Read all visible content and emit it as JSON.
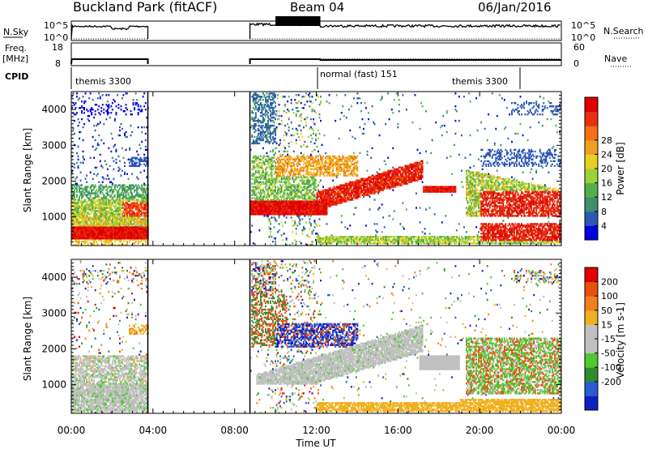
{
  "header": {
    "station": "Buckland Park (fitACF)",
    "beam": "Beam 04",
    "date": "06/Jan/2016"
  },
  "panels": {
    "nsky": {
      "label": "N.Sky",
      "tick_top": "10^5",
      "tick_bottom": "10^0"
    },
    "nsearch": {
      "label": "N.Search",
      "tick_top": "10^5",
      "tick_bottom": "10^0"
    },
    "freq": {
      "label_line1": "Freq.",
      "label_line2": "[MHz]",
      "tick_top": "18",
      "tick_bottom": "8"
    },
    "nave": {
      "label": "Nave",
      "tick_top": "60",
      "tick_bottom": "0"
    },
    "cpid": {
      "label": "CPID",
      "segments": [
        "themis 3300",
        "normal (fast) 151",
        "themis 3300"
      ]
    }
  },
  "chart_data": [
    {
      "type": "heatmap",
      "quantity": "Power",
      "xlabel": "",
      "ylabel": "Slant Range [km]",
      "x_ticks": [
        "00:00",
        "04:00",
        "08:00",
        "12:00",
        "16:00",
        "20:00",
        "00:00"
      ],
      "y_ticks": [
        1000,
        2000,
        3000,
        4000
      ],
      "ylim": [
        200,
        4500
      ],
      "colorbar": {
        "label": "Power [dB]",
        "ticks": [
          4,
          8,
          12,
          16,
          20,
          24,
          28
        ],
        "colors": [
          "#0000e0",
          "#2d57b5",
          "#3f8f6a",
          "#52b04a",
          "#9bd23a",
          "#e8d020",
          "#f0a020",
          "#f27018",
          "#e83010",
          "#e00000"
        ]
      },
      "data_gap_hours": [
        3.75,
        8.75
      ]
    },
    {
      "type": "heatmap",
      "quantity": "Velocity",
      "xlabel": "Time UT",
      "ylabel": "Slant Range [km]",
      "x_ticks": [
        "00:00",
        "04:00",
        "08:00",
        "12:00",
        "16:00",
        "20:00",
        "00:00"
      ],
      "y_ticks": [
        1000,
        2000,
        3000,
        4000
      ],
      "ylim": [
        200,
        4500
      ],
      "colorbar": {
        "label": "Velocity [m s-1]",
        "ticks": [
          "200",
          "100",
          "50",
          "15",
          "-15",
          "-50",
          "-100",
          "-200"
        ],
        "colors": [
          "#1020c0",
          "#2a5cd0",
          "#2e8b30",
          "#50c830",
          "#c0c0c0",
          "#c0c0c0",
          "#f0b020",
          "#f08020",
          "#e85010",
          "#e00000"
        ]
      },
      "data_gap_hours": [
        3.75,
        8.75
      ]
    }
  ]
}
